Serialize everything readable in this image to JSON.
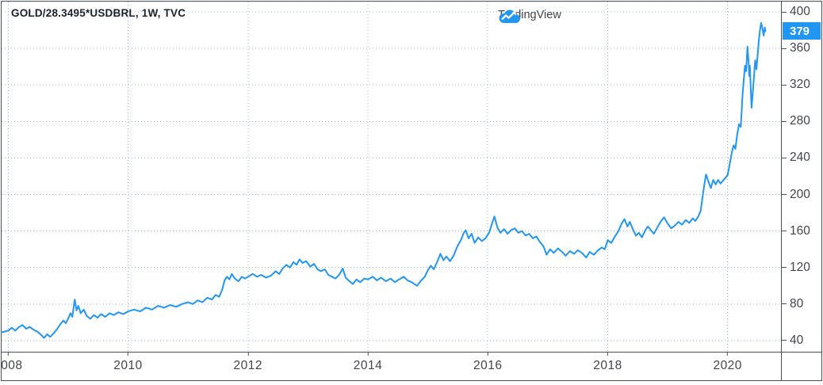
{
  "header": {
    "symbol_title": "GOLD/28.3495*USDBRL, 1W, TVC"
  },
  "watermark": {
    "brand": "TradingView"
  },
  "colors": {
    "line": "#2196F3",
    "grid": "#4f86b0",
    "border": "#4a4e58",
    "axis_text": "#42454e",
    "last_price_bg": "#2196F3",
    "last_price_text": "#ffffff"
  },
  "chart_data": {
    "type": "line",
    "title": "GOLD/28.3495*USDBRL, 1W, TVC",
    "symbol": "GOLD/28.3495*USDBRL",
    "interval": "1W",
    "exchange": "TVC",
    "xlabel": "",
    "ylabel": "",
    "grid": "dotted",
    "legend_position": "none",
    "x_domain": [
      2007.89,
      2020.89
    ],
    "y_domain": [
      27.8,
      411.3
    ],
    "x_ticks": [
      {
        "value": 2008,
        "label": "2008"
      },
      {
        "value": 2010,
        "label": "2010"
      },
      {
        "value": 2012,
        "label": "2012"
      },
      {
        "value": 2014,
        "label": "2014"
      },
      {
        "value": 2016,
        "label": "2016"
      },
      {
        "value": 2018,
        "label": "2018"
      },
      {
        "value": 2020,
        "label": "2020"
      }
    ],
    "y_ticks": [
      {
        "value": 400,
        "label": "400"
      },
      {
        "value": 360,
        "label": "360"
      },
      {
        "value": 320,
        "label": "320"
      },
      {
        "value": 280,
        "label": "280"
      },
      {
        "value": 240,
        "label": "240"
      },
      {
        "value": 200,
        "label": "200"
      },
      {
        "value": 160,
        "label": "160"
      },
      {
        "value": 120,
        "label": "120"
      },
      {
        "value": 80,
        "label": "80"
      },
      {
        "value": 40,
        "label": "40"
      }
    ],
    "last_price": "379",
    "last_price_value": 379,
    "series": [
      {
        "name": "GOLD/28.3495*USDBRL",
        "points": [
          [
            2007.89,
            49
          ],
          [
            2008.0,
            51
          ],
          [
            2008.06,
            54
          ],
          [
            2008.12,
            51
          ],
          [
            2008.18,
            55
          ],
          [
            2008.24,
            57
          ],
          [
            2008.3,
            53
          ],
          [
            2008.36,
            55
          ],
          [
            2008.42,
            52
          ],
          [
            2008.48,
            50
          ],
          [
            2008.54,
            47
          ],
          [
            2008.6,
            43
          ],
          [
            2008.65,
            47
          ],
          [
            2008.7,
            44
          ],
          [
            2008.76,
            48
          ],
          [
            2008.82,
            53
          ],
          [
            2008.87,
            58
          ],
          [
            2008.92,
            62
          ],
          [
            2008.96,
            59
          ],
          [
            2009.0,
            64
          ],
          [
            2009.04,
            70
          ],
          [
            2009.07,
            66
          ],
          [
            2009.11,
            85
          ],
          [
            2009.14,
            73
          ],
          [
            2009.17,
            78
          ],
          [
            2009.21,
            70
          ],
          [
            2009.26,
            74
          ],
          [
            2009.31,
            67
          ],
          [
            2009.37,
            64
          ],
          [
            2009.43,
            68
          ],
          [
            2009.49,
            65
          ],
          [
            2009.55,
            69
          ],
          [
            2009.62,
            66
          ],
          [
            2009.69,
            70
          ],
          [
            2009.76,
            68
          ],
          [
            2009.84,
            71
          ],
          [
            2009.92,
            69
          ],
          [
            2010.0,
            72
          ],
          [
            2010.1,
            74
          ],
          [
            2010.2,
            72
          ],
          [
            2010.3,
            76
          ],
          [
            2010.4,
            74
          ],
          [
            2010.5,
            78
          ],
          [
            2010.6,
            76
          ],
          [
            2010.7,
            79
          ],
          [
            2010.8,
            77
          ],
          [
            2010.9,
            80
          ],
          [
            2011.0,
            82
          ],
          [
            2011.08,
            80
          ],
          [
            2011.16,
            84
          ],
          [
            2011.24,
            82
          ],
          [
            2011.32,
            87
          ],
          [
            2011.4,
            85
          ],
          [
            2011.46,
            90
          ],
          [
            2011.52,
            88
          ],
          [
            2011.57,
            96
          ],
          [
            2011.61,
            106
          ],
          [
            2011.65,
            110
          ],
          [
            2011.69,
            107
          ],
          [
            2011.73,
            113
          ],
          [
            2011.78,
            108
          ],
          [
            2011.84,
            105
          ],
          [
            2011.9,
            110
          ],
          [
            2011.95,
            108
          ],
          [
            2012.0,
            110
          ],
          [
            2012.08,
            113
          ],
          [
            2012.15,
            110
          ],
          [
            2012.22,
            112
          ],
          [
            2012.3,
            109
          ],
          [
            2012.38,
            111
          ],
          [
            2012.46,
            116
          ],
          [
            2012.52,
            113
          ],
          [
            2012.58,
            119
          ],
          [
            2012.64,
            123
          ],
          [
            2012.7,
            120
          ],
          [
            2012.76,
            126
          ],
          [
            2012.81,
            123
          ],
          [
            2012.86,
            129
          ],
          [
            2012.91,
            125
          ],
          [
            2012.97,
            127
          ],
          [
            2013.04,
            121
          ],
          [
            2013.1,
            124
          ],
          [
            2013.16,
            118
          ],
          [
            2013.22,
            116
          ],
          [
            2013.28,
            118
          ],
          [
            2013.34,
            112
          ],
          [
            2013.4,
            110
          ],
          [
            2013.46,
            108
          ],
          [
            2013.52,
            112
          ],
          [
            2013.58,
            119
          ],
          [
            2013.63,
            109
          ],
          [
            2013.69,
            105
          ],
          [
            2013.75,
            102
          ],
          [
            2013.81,
            107
          ],
          [
            2013.87,
            104
          ],
          [
            2013.94,
            108
          ],
          [
            2014.0,
            107
          ],
          [
            2014.08,
            110
          ],
          [
            2014.15,
            106
          ],
          [
            2014.22,
            109
          ],
          [
            2014.3,
            105
          ],
          [
            2014.38,
            108
          ],
          [
            2014.45,
            104
          ],
          [
            2014.52,
            107
          ],
          [
            2014.6,
            110
          ],
          [
            2014.66,
            106
          ],
          [
            2014.73,
            104
          ],
          [
            2014.82,
            100
          ],
          [
            2014.89,
            106
          ],
          [
            2014.95,
            110
          ],
          [
            2015.0,
            117
          ],
          [
            2015.05,
            122
          ],
          [
            2015.1,
            118
          ],
          [
            2015.16,
            127
          ],
          [
            2015.21,
            135
          ],
          [
            2015.26,
            128
          ],
          [
            2015.31,
            132
          ],
          [
            2015.37,
            127
          ],
          [
            2015.43,
            133
          ],
          [
            2015.49,
            143
          ],
          [
            2015.55,
            150
          ],
          [
            2015.6,
            158
          ],
          [
            2015.63,
            161
          ],
          [
            2015.68,
            152
          ],
          [
            2015.73,
            157
          ],
          [
            2015.78,
            147
          ],
          [
            2015.84,
            153
          ],
          [
            2015.9,
            149
          ],
          [
            2015.96,
            152
          ],
          [
            2016.02,
            158
          ],
          [
            2016.07,
            168
          ],
          [
            2016.11,
            176
          ],
          [
            2016.16,
            164
          ],
          [
            2016.21,
            158
          ],
          [
            2016.27,
            162
          ],
          [
            2016.33,
            157
          ],
          [
            2016.39,
            161
          ],
          [
            2016.45,
            163
          ],
          [
            2016.51,
            158
          ],
          [
            2016.57,
            160
          ],
          [
            2016.63,
            155
          ],
          [
            2016.69,
            157
          ],
          [
            2016.75,
            152
          ],
          [
            2016.81,
            154
          ],
          [
            2016.87,
            148
          ],
          [
            2016.93,
            143
          ],
          [
            2016.98,
            134
          ],
          [
            2017.04,
            140
          ],
          [
            2017.1,
            136
          ],
          [
            2017.17,
            141
          ],
          [
            2017.24,
            137
          ],
          [
            2017.3,
            133
          ],
          [
            2017.37,
            138
          ],
          [
            2017.44,
            135
          ],
          [
            2017.5,
            139
          ],
          [
            2017.57,
            136
          ],
          [
            2017.64,
            131
          ],
          [
            2017.7,
            137
          ],
          [
            2017.77,
            134
          ],
          [
            2017.84,
            139
          ],
          [
            2017.9,
            142
          ],
          [
            2017.95,
            140
          ],
          [
            2018.0,
            150
          ],
          [
            2018.06,
            147
          ],
          [
            2018.12,
            154
          ],
          [
            2018.18,
            160
          ],
          [
            2018.23,
            168
          ],
          [
            2018.28,
            173
          ],
          [
            2018.33,
            165
          ],
          [
            2018.37,
            170
          ],
          [
            2018.42,
            162
          ],
          [
            2018.47,
            155
          ],
          [
            2018.52,
            158
          ],
          [
            2018.57,
            153
          ],
          [
            2018.62,
            160
          ],
          [
            2018.67,
            165
          ],
          [
            2018.72,
            161
          ],
          [
            2018.77,
            157
          ],
          [
            2018.82,
            163
          ],
          [
            2018.88,
            170
          ],
          [
            2018.94,
            175
          ],
          [
            2019.0,
            168
          ],
          [
            2019.06,
            163
          ],
          [
            2019.12,
            166
          ],
          [
            2019.18,
            170
          ],
          [
            2019.24,
            167
          ],
          [
            2019.3,
            172
          ],
          [
            2019.36,
            169
          ],
          [
            2019.42,
            174
          ],
          [
            2019.46,
            171
          ],
          [
            2019.51,
            176
          ],
          [
            2019.55,
            182
          ],
          [
            2019.58,
            196
          ],
          [
            2019.61,
            210
          ],
          [
            2019.64,
            222
          ],
          [
            2019.68,
            214
          ],
          [
            2019.72,
            207
          ],
          [
            2019.76,
            216
          ],
          [
            2019.8,
            211
          ],
          [
            2019.84,
            216
          ],
          [
            2019.88,
            212
          ],
          [
            2019.92,
            215
          ],
          [
            2019.96,
            218
          ],
          [
            2020.0,
            221
          ],
          [
            2020.04,
            235
          ],
          [
            2020.07,
            246
          ],
          [
            2020.1,
            254
          ],
          [
            2020.13,
            250
          ],
          [
            2020.16,
            266
          ],
          [
            2020.19,
            277
          ],
          [
            2020.22,
            274
          ],
          [
            2020.25,
            310
          ],
          [
            2020.27,
            326
          ],
          [
            2020.29,
            341
          ],
          [
            2020.31,
            335
          ],
          [
            2020.33,
            362
          ],
          [
            2020.35,
            345
          ],
          [
            2020.36,
            330
          ],
          [
            2020.37,
            341
          ],
          [
            2020.4,
            295
          ],
          [
            2020.42,
            312
          ],
          [
            2020.44,
            330
          ],
          [
            2020.46,
            347
          ],
          [
            2020.48,
            337
          ],
          [
            2020.5,
            352
          ],
          [
            2020.52,
            368
          ],
          [
            2020.54,
            380
          ],
          [
            2020.56,
            388
          ],
          [
            2020.58,
            382
          ],
          [
            2020.6,
            374
          ],
          [
            2020.62,
            383
          ],
          [
            2020.63,
            379
          ]
        ]
      }
    ]
  }
}
